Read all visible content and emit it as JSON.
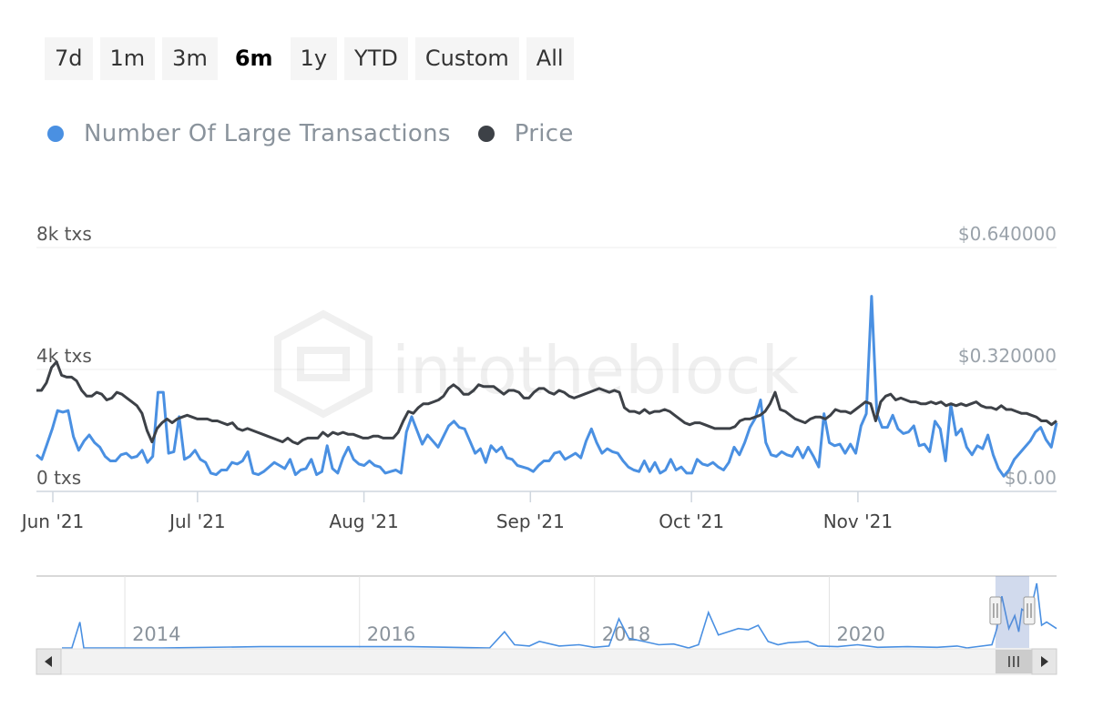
{
  "range_selector": {
    "buttons": [
      "7d",
      "1m",
      "3m",
      "6m",
      "1y",
      "YTD",
      "Custom",
      "All"
    ],
    "selected": "6m"
  },
  "legend": {
    "items": [
      {
        "label": "Number Of Large Transactions",
        "color": "#4a90e2"
      },
      {
        "label": "Price",
        "color": "#3d4147"
      }
    ]
  },
  "watermark": "intotheblock",
  "chart_data": {
    "type": "line",
    "x_start": "2021-06-01",
    "x_end": "2021-12-08",
    "x_ticks": [
      {
        "label": "Jun '21",
        "date": "2021-06-01"
      },
      {
        "label": "Jul '21",
        "date": "2021-07-01"
      },
      {
        "label": "Aug '21",
        "date": "2021-08-01"
      },
      {
        "label": "Sep '21",
        "date": "2021-09-01"
      },
      {
        "label": "Oct '21",
        "date": "2021-10-01"
      },
      {
        "label": "Nov '21",
        "date": "2021-11-01"
      }
    ],
    "y_left": {
      "ticks": [
        "0 txs",
        "4k txs",
        "8k txs"
      ],
      "range": [
        0,
        8000
      ]
    },
    "y_right": {
      "ticks": [
        "$0.00",
        "$0.320000",
        "$0.640000"
      ],
      "range": [
        0,
        0.64
      ]
    },
    "series": [
      {
        "name": "Number Of Large Transactions",
        "axis": "left",
        "color": "#4a90e2",
        "values": [
          1200,
          1050,
          1550,
          2050,
          2650,
          2600,
          2650,
          1800,
          1350,
          1650,
          1850,
          1600,
          1450,
          1150,
          1000,
          1000,
          1200,
          1250,
          1100,
          1150,
          1350,
          950,
          1150,
          3250,
          3250,
          1250,
          1300,
          2450,
          1050,
          1150,
          1350,
          1050,
          950,
          600,
          550,
          700,
          700,
          950,
          900,
          1000,
          1300,
          600,
          550,
          650,
          800,
          950,
          850,
          750,
          1050,
          550,
          700,
          750,
          1050,
          550,
          650,
          1500,
          750,
          600,
          1100,
          1450,
          1050,
          900,
          850,
          1000,
          850,
          800,
          600,
          650,
          700,
          600,
          1950,
          2450,
          2000,
          1550,
          1850,
          1650,
          1450,
          1800,
          2150,
          2300,
          2100,
          2050,
          1650,
          1250,
          1400,
          950,
          1500,
          1300,
          1450,
          1100,
          1050,
          850,
          800,
          750,
          650,
          850,
          1000,
          1000,
          1250,
          1300,
          1050,
          1150,
          1250,
          1100,
          1650,
          2050,
          1600,
          1250,
          1400,
          1300,
          1250,
          1000,
          800,
          700,
          650,
          1000,
          650,
          950,
          600,
          700,
          1050,
          700,
          800,
          600,
          600,
          1050,
          900,
          850,
          950,
          800,
          700,
          950,
          1450,
          1200,
          1600,
          2100,
          2400,
          3000,
          1600,
          1200,
          1150,
          1300,
          1200,
          1150,
          1450,
          1100,
          1450,
          1150,
          800,
          2550,
          1600,
          1500,
          1550,
          1250,
          1550,
          1250,
          2150,
          2550,
          6400,
          2550,
          2100,
          2100,
          2500,
          2050,
          1900,
          1950,
          2150,
          1500,
          1550,
          1300,
          2300,
          2050,
          1000,
          2850,
          1850,
          2050,
          1450,
          1200,
          1500,
          1400,
          1850,
          1200,
          750,
          500,
          700,
          1050,
          1250,
          1450,
          1650,
          1950,
          2100,
          1700,
          1450,
          2250
        ]
      },
      {
        "name": "Price",
        "axis": "right",
        "color": "#3d4147",
        "values": [
          0.265,
          0.265,
          0.285,
          0.325,
          0.34,
          0.305,
          0.3,
          0.3,
          0.29,
          0.265,
          0.25,
          0.25,
          0.26,
          0.255,
          0.24,
          0.245,
          0.26,
          0.255,
          0.245,
          0.235,
          0.225,
          0.205,
          0.16,
          0.13,
          0.165,
          0.18,
          0.19,
          0.18,
          0.19,
          0.195,
          0.2,
          0.195,
          0.19,
          0.19,
          0.19,
          0.185,
          0.185,
          0.18,
          0.175,
          0.18,
          0.165,
          0.16,
          0.165,
          0.16,
          0.155,
          0.15,
          0.145,
          0.14,
          0.135,
          0.13,
          0.14,
          0.13,
          0.125,
          0.135,
          0.14,
          0.14,
          0.14,
          0.155,
          0.145,
          0.155,
          0.15,
          0.155,
          0.15,
          0.15,
          0.145,
          0.14,
          0.14,
          0.145,
          0.145,
          0.14,
          0.14,
          0.14,
          0.155,
          0.185,
          0.21,
          0.205,
          0.22,
          0.23,
          0.23,
          0.235,
          0.24,
          0.25,
          0.27,
          0.28,
          0.27,
          0.255,
          0.255,
          0.265,
          0.28,
          0.275,
          0.275,
          0.275,
          0.265,
          0.255,
          0.265,
          0.265,
          0.26,
          0.245,
          0.245,
          0.26,
          0.27,
          0.27,
          0.26,
          0.255,
          0.265,
          0.26,
          0.25,
          0.245,
          0.25,
          0.255,
          0.26,
          0.265,
          0.27,
          0.265,
          0.26,
          0.265,
          0.26,
          0.22,
          0.21,
          0.21,
          0.205,
          0.215,
          0.205,
          0.21,
          0.21,
          0.215,
          0.21,
          0.2,
          0.19,
          0.18,
          0.175,
          0.18,
          0.18,
          0.175,
          0.17,
          0.165,
          0.165,
          0.165,
          0.165,
          0.17,
          0.185,
          0.19,
          0.19,
          0.195,
          0.2,
          0.21,
          0.23,
          0.26,
          0.215,
          0.21,
          0.2,
          0.19,
          0.185,
          0.18,
          0.19,
          0.195,
          0.195,
          0.19,
          0.2,
          0.215,
          0.21,
          0.21,
          0.205,
          0.215,
          0.225,
          0.235,
          0.23,
          0.185,
          0.235,
          0.25,
          0.255,
          0.24,
          0.245,
          0.24,
          0.235,
          0.235,
          0.23,
          0.23,
          0.235,
          0.23,
          0.235,
          0.225,
          0.23,
          0.225,
          0.23,
          0.225,
          0.23,
          0.235,
          0.225,
          0.22,
          0.22,
          0.215,
          0.225,
          0.215,
          0.215,
          0.21,
          0.205,
          0.205,
          0.2,
          0.195,
          0.185,
          0.185,
          0.175,
          0.185
        ]
      }
    ],
    "navigator": {
      "ticks": [
        "2014",
        "2016",
        "2018",
        "2020"
      ],
      "x_start": "2013-04-01",
      "x_end": "2021-12-08",
      "selected_start": "2021-06-01",
      "selected_end": "2021-12-08",
      "scroll_thumb_icon": "grip-lines-icon",
      "left_arrow_icon": "arrow-left-icon",
      "right_arrow_icon": "arrow-right-icon",
      "handle_icon": "drag-handle-icon",
      "series": [
        {
          "name": "Number Of Large Transactions",
          "color": "#4a90e2",
          "points": [
            [
              0,
              0
            ],
            [
              0.01,
              0
            ],
            [
              0.018,
              0.4
            ],
            [
              0.022,
              0
            ],
            [
              0.1,
              0
            ],
            [
              0.2,
              0.02
            ],
            [
              0.35,
              0.02
            ],
            [
              0.43,
              0
            ],
            [
              0.445,
              0.25
            ],
            [
              0.455,
              0.05
            ],
            [
              0.47,
              0.03
            ],
            [
              0.48,
              0.1
            ],
            [
              0.5,
              0.03
            ],
            [
              0.52,
              0.05
            ],
            [
              0.535,
              0.01
            ],
            [
              0.55,
              0.03
            ],
            [
              0.56,
              0.45
            ],
            [
              0.57,
              0.15
            ],
            [
              0.585,
              0.1
            ],
            [
              0.6,
              0.05
            ],
            [
              0.615,
              0.06
            ],
            [
              0.63,
              0.0
            ],
            [
              0.64,
              0.05
            ],
            [
              0.65,
              0.55
            ],
            [
              0.66,
              0.2
            ],
            [
              0.67,
              0.25
            ],
            [
              0.68,
              0.3
            ],
            [
              0.69,
              0.28
            ],
            [
              0.7,
              0.35
            ],
            [
              0.71,
              0.1
            ],
            [
              0.72,
              0.05
            ],
            [
              0.73,
              0.08
            ],
            [
              0.75,
              0.1
            ],
            [
              0.76,
              0.03
            ],
            [
              0.78,
              0.02
            ],
            [
              0.8,
              0.05
            ],
            [
              0.82,
              0.01
            ],
            [
              0.85,
              0.02
            ],
            [
              0.88,
              0.01
            ],
            [
              0.9,
              0.03
            ],
            [
              0.91,
              0.0
            ],
            [
              0.935,
              0.05
            ],
            [
              0.94,
              0.3
            ],
            [
              0.945,
              0.8
            ],
            [
              0.952,
              0.3
            ],
            [
              0.958,
              0.5
            ],
            [
              0.962,
              0.25
            ],
            [
              0.965,
              0.6
            ],
            [
              0.97,
              0.55
            ],
            [
              0.975,
              0.65
            ],
            [
              0.98,
              1.0
            ],
            [
              0.985,
              0.35
            ],
            [
              0.99,
              0.4
            ],
            [
              1.0,
              0.3
            ]
          ]
        }
      ]
    }
  }
}
